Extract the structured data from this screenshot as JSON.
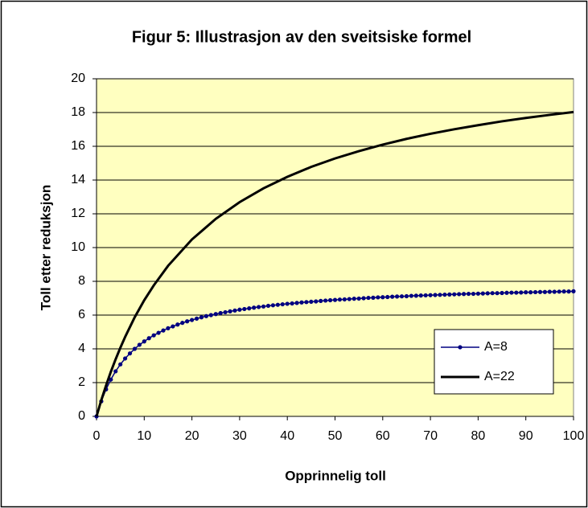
{
  "chart_data": {
    "type": "line",
    "title": "Figur 5: Illustrasjon av den sveitsiske formel",
    "xlabel": "Opprinnelig toll",
    "ylabel": "Toll etter reduksjon",
    "x": [
      0,
      1,
      2,
      3,
      4,
      5,
      6,
      7,
      8,
      9,
      10,
      11,
      12,
      13,
      14,
      15,
      16,
      17,
      18,
      19,
      20,
      21,
      22,
      23,
      24,
      25,
      26,
      27,
      28,
      29,
      30,
      31,
      32,
      33,
      34,
      35,
      36,
      37,
      38,
      39,
      40,
      41,
      42,
      43,
      44,
      45,
      46,
      47,
      48,
      49,
      50,
      51,
      52,
      53,
      54,
      55,
      56,
      57,
      58,
      59,
      60,
      61,
      62,
      63,
      64,
      65,
      66,
      67,
      68,
      69,
      70,
      71,
      72,
      73,
      74,
      75,
      76,
      77,
      78,
      79,
      80,
      81,
      82,
      83,
      84,
      85,
      86,
      87,
      88,
      89,
      90,
      91,
      92,
      93,
      94,
      95,
      96,
      97,
      98,
      99,
      100
    ],
    "series": [
      {
        "name": "A=8",
        "color": "#000080",
        "markers": true,
        "values": [
          0,
          0.89,
          1.6,
          2.18,
          2.67,
          3.08,
          3.43,
          3.73,
          4,
          4.24,
          4.44,
          4.63,
          4.8,
          4.95,
          5.09,
          5.22,
          5.33,
          5.44,
          5.54,
          5.63,
          5.71,
          5.79,
          5.87,
          5.94,
          6,
          6.06,
          6.12,
          6.17,
          6.22,
          6.27,
          6.32,
          6.36,
          6.4,
          6.44,
          6.48,
          6.51,
          6.55,
          6.58,
          6.61,
          6.64,
          6.67,
          6.69,
          6.72,
          6.75,
          6.77,
          6.79,
          6.81,
          6.84,
          6.86,
          6.88,
          6.9,
          6.92,
          6.93,
          6.95,
          6.97,
          6.98,
          7,
          7.02,
          7.03,
          7.05,
          7.06,
          7.07,
          7.09,
          7.1,
          7.11,
          7.12,
          7.14,
          7.15,
          7.16,
          7.17,
          7.18,
          7.19,
          7.2,
          7.21,
          7.22,
          7.23,
          7.24,
          7.25,
          7.26,
          7.26,
          7.27,
          7.28,
          7.29,
          7.3,
          7.3,
          7.31,
          7.32,
          7.33,
          7.33,
          7.34,
          7.35,
          7.35,
          7.36,
          7.37,
          7.37,
          7.38,
          7.38,
          7.39,
          7.4,
          7.4,
          7.41
        ]
      },
      {
        "name": "A=22",
        "color": "#000000",
        "markers": false,
        "x": [
          0,
          1,
          2,
          3,
          4,
          5,
          6,
          8,
          10,
          12,
          15,
          20,
          25,
          30,
          35,
          40,
          45,
          50,
          55,
          60,
          65,
          70,
          75,
          80,
          85,
          90,
          95,
          100
        ],
        "values": [
          0,
          0.96,
          1.83,
          2.64,
          3.38,
          4.07,
          4.71,
          5.87,
          6.88,
          7.76,
          8.92,
          10.48,
          11.7,
          12.69,
          13.51,
          14.19,
          14.78,
          15.28,
          15.71,
          16.1,
          16.44,
          16.74,
          17.01,
          17.25,
          17.48,
          17.68,
          17.86,
          18.03
        ]
      }
    ],
    "xlim": [
      0,
      100
    ],
    "xticks": [
      0,
      10,
      20,
      30,
      40,
      50,
      60,
      70,
      80,
      90,
      100
    ],
    "ylim": [
      0,
      20
    ],
    "yticks": [
      0,
      2,
      4,
      6,
      8,
      10,
      12,
      14,
      16,
      18,
      20
    ],
    "grid": true,
    "legend": "lower right",
    "plot_background": "#ffffc0"
  }
}
